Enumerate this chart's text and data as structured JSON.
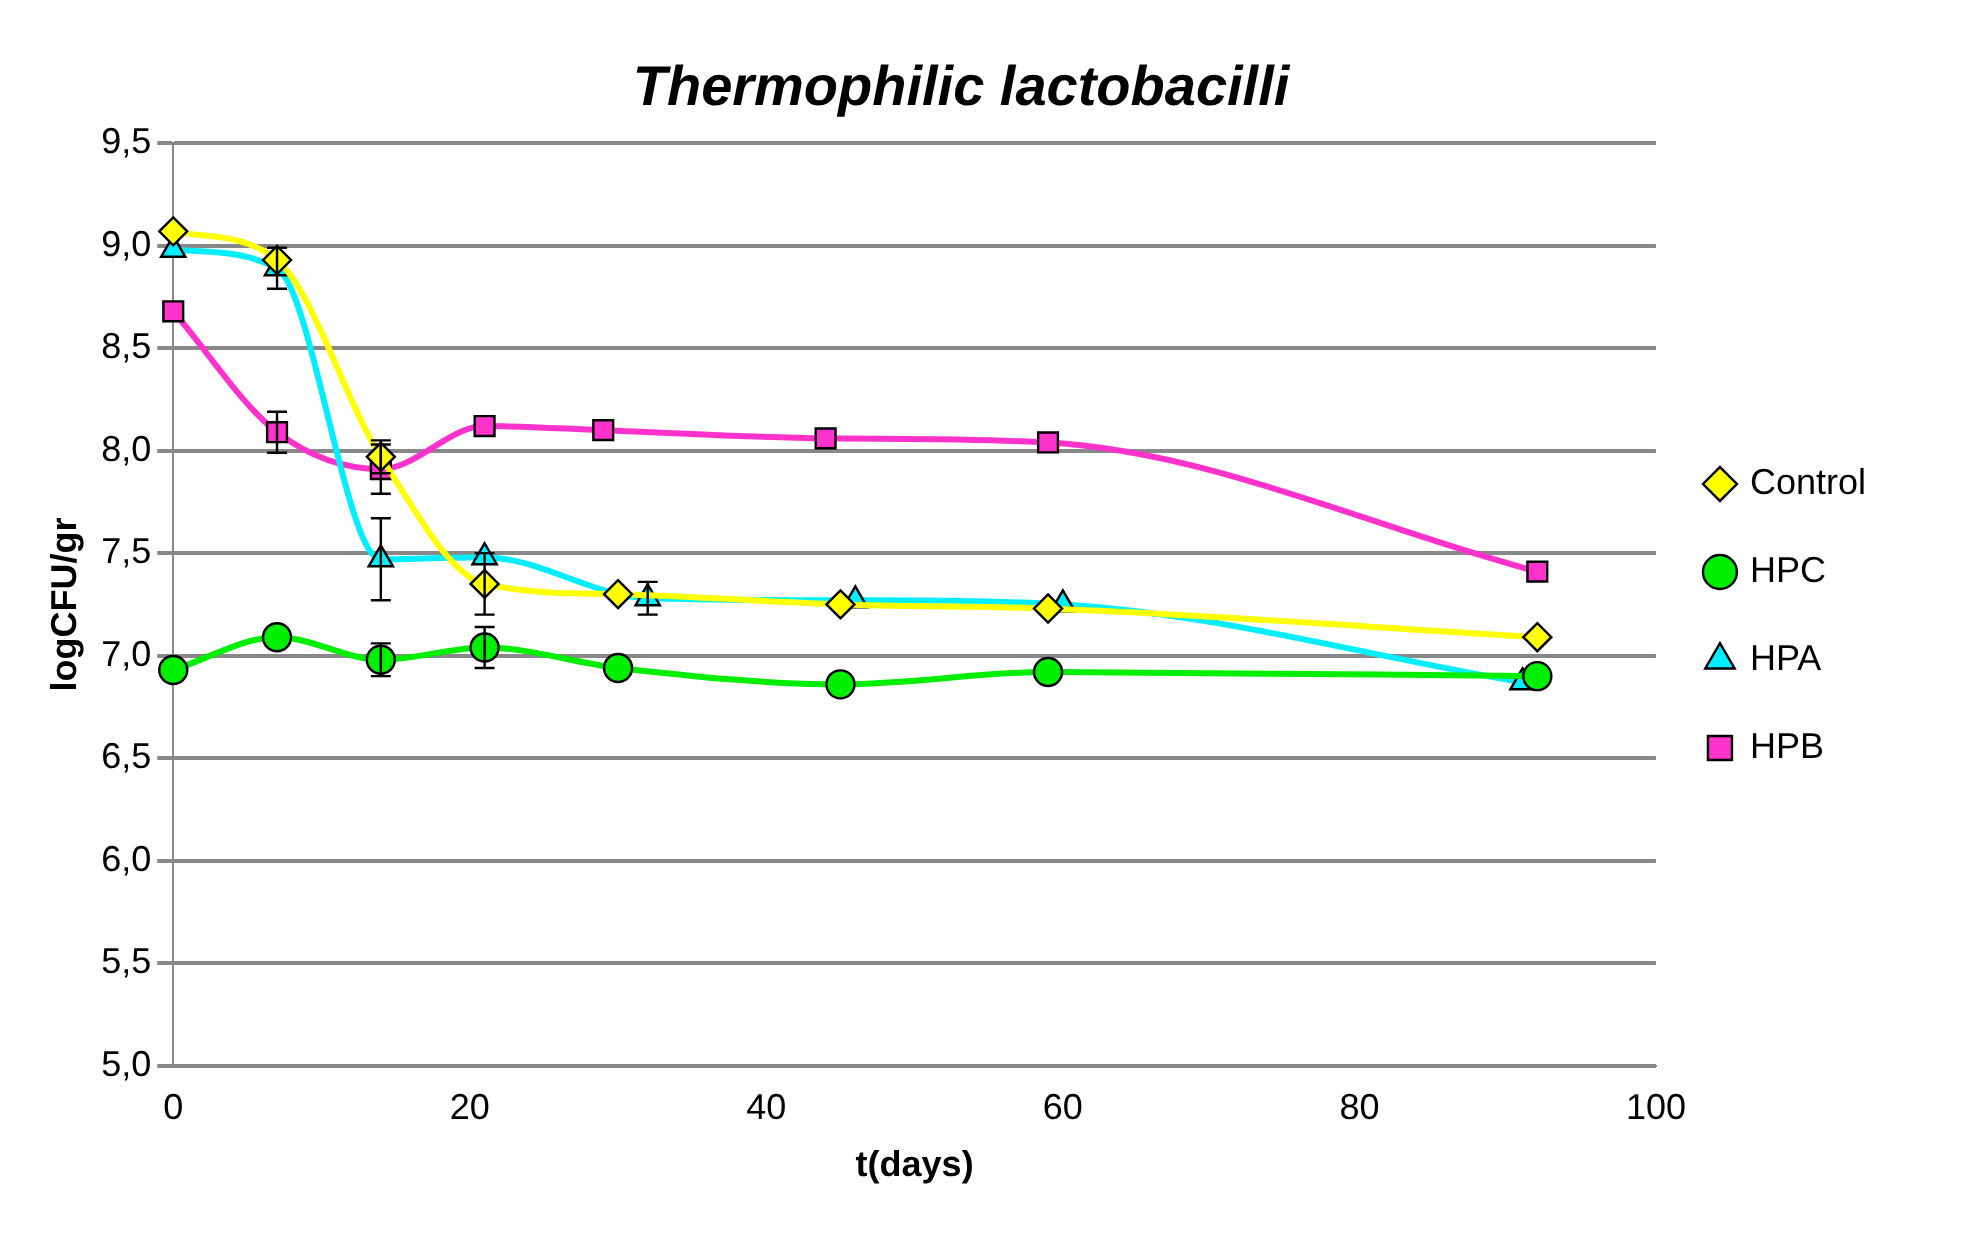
{
  "chart_data": {
    "type": "line",
    "title": "Thermophilic lactobacilli",
    "xlabel": "t(days)",
    "ylabel": "logCFU/gr",
    "xlim": [
      0,
      100
    ],
    "xticks": [
      0,
      20,
      40,
      60,
      80,
      100
    ],
    "ylim": [
      5,
      9.5
    ],
    "yticks": [
      {
        "value": 5,
        "label": "5,0"
      },
      {
        "value": 5.5,
        "label": "5,5"
      },
      {
        "value": 6,
        "label": "6,0"
      },
      {
        "value": 6.5,
        "label": "6,5"
      },
      {
        "value": 7,
        "label": "7,0"
      },
      {
        "value": 7.5,
        "label": "7,5"
      },
      {
        "value": 8,
        "label": "8,0"
      },
      {
        "value": 8.5,
        "label": "8,5"
      },
      {
        "value": 9,
        "label": "9,0"
      },
      {
        "value": 9.5,
        "label": "9,5"
      }
    ],
    "grid": "y",
    "legend": "right",
    "series": [
      {
        "name": "Control",
        "color": "#ffff00",
        "marker": "diamond",
        "x": [
          0,
          7,
          14,
          21,
          30,
          45,
          59,
          92
        ],
        "values": [
          9.07,
          8.93,
          7.97,
          7.35,
          7.3,
          7.25,
          7.23,
          7.09
        ],
        "errors": [
          null,
          null,
          0.08,
          0.15,
          null,
          null,
          null,
          null
        ]
      },
      {
        "name": "HPC",
        "color": "#00ee00",
        "marker": "circle",
        "x": [
          0,
          7,
          14,
          21,
          30,
          45,
          59,
          92
        ],
        "values": [
          6.93,
          7.09,
          6.98,
          7.04,
          6.94,
          6.86,
          6.92,
          6.9
        ],
        "errors": [
          null,
          null,
          0.08,
          0.1,
          null,
          null,
          null,
          null
        ]
      },
      {
        "name": "HPA",
        "color": "#00eeff",
        "marker": "triangle",
        "x": [
          0,
          7,
          14,
          21,
          32,
          46,
          60,
          91
        ],
        "values": [
          8.98,
          8.89,
          7.47,
          7.48,
          7.28,
          7.27,
          7.25,
          6.87
        ],
        "errors": [
          null,
          0.1,
          0.2,
          null,
          0.08,
          null,
          null,
          null
        ]
      },
      {
        "name": "HPB",
        "color": "#ff33cc",
        "marker": "square",
        "x": [
          0,
          7,
          14,
          21,
          29,
          44,
          59,
          92
        ],
        "values": [
          8.68,
          8.09,
          7.91,
          8.12,
          8.1,
          8.06,
          8.04,
          7.41
        ],
        "errors": [
          null,
          0.1,
          0.12,
          null,
          null,
          null,
          null,
          null
        ]
      }
    ]
  }
}
